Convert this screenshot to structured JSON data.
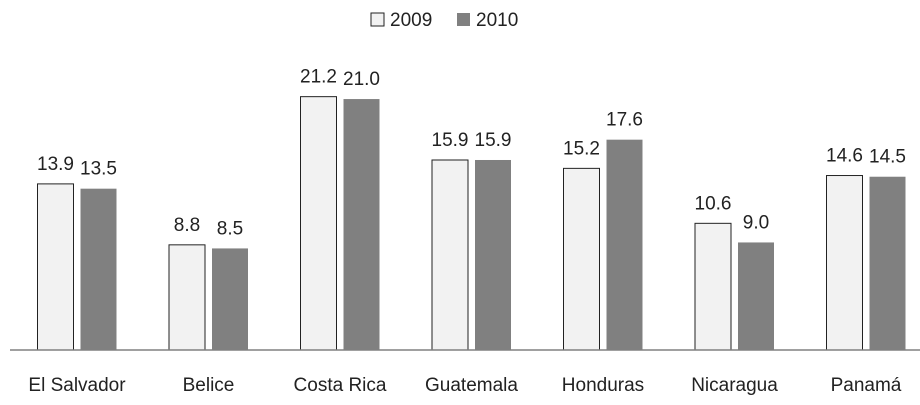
{
  "chart_data": {
    "type": "bar",
    "categories": [
      "El Salvador",
      "Belice",
      "Costa Rica",
      "Guatemala",
      "Honduras",
      "Nicaragua",
      "Panamá"
    ],
    "series": [
      {
        "name": "2009",
        "values": [
          13.9,
          8.8,
          21.2,
          15.9,
          15.2,
          10.6,
          14.6
        ],
        "labels": [
          "13.9",
          "8.8",
          "21.2",
          "15.9",
          "15.2",
          "10.6",
          "14.6"
        ],
        "color": "#f2f2f2"
      },
      {
        "name": "2010",
        "values": [
          13.5,
          8.5,
          21.0,
          15.9,
          17.6,
          9.0,
          14.5
        ],
        "labels": [
          "13.5",
          "8.5",
          "21.0",
          "15.9",
          "17.6",
          "9.0",
          "14.5"
        ],
        "color": "#808080"
      }
    ],
    "ylim": [
      0,
      25
    ],
    "grid": false,
    "legend": "top-center",
    "border_color": "#222222"
  }
}
